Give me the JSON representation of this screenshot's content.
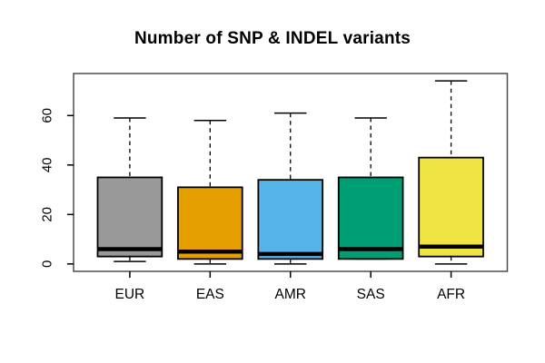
{
  "title": "Number of SNP & INDEL variants",
  "chart_data": {
    "type": "boxplot",
    "title": "Number of SNP & INDEL variants",
    "categories": [
      "EUR",
      "EAS",
      "AMR",
      "SAS",
      "AFR"
    ],
    "series": [
      {
        "name": "EUR",
        "min": 1,
        "q1": 3,
        "median": 6,
        "q3": 35,
        "max": 59,
        "color": "#999999"
      },
      {
        "name": "EAS",
        "min": 0,
        "q1": 2,
        "median": 5,
        "q3": 31,
        "max": 58,
        "color": "#E69F00"
      },
      {
        "name": "AMR",
        "min": 0,
        "q1": 2,
        "median": 4,
        "q3": 34,
        "max": 61,
        "color": "#56B4E9"
      },
      {
        "name": "SAS",
        "min": 2,
        "q1": 2,
        "median": 6,
        "q3": 35,
        "max": 59,
        "color": "#009E73"
      },
      {
        "name": "AFR",
        "min": 0,
        "q1": 3,
        "median": 7,
        "q3": 43,
        "max": 74,
        "color": "#F0E442"
      }
    ],
    "xlabel": "",
    "ylabel": "",
    "yticks": [
      0,
      20,
      40,
      60
    ],
    "ylim": [
      -3,
      77
    ],
    "grid": false,
    "legend": false,
    "whisker_line_style": "dashed",
    "box_border_color": "#000000",
    "median_color": "#000000",
    "frame_color": "#4d4d4d",
    "axis_color": "#000000"
  }
}
